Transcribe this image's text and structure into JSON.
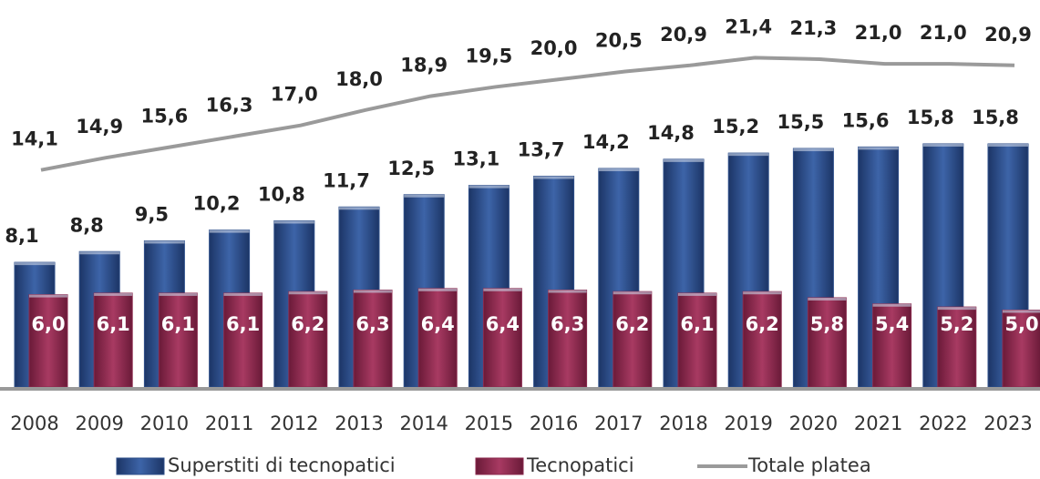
{
  "chart_data": {
    "type": "bar",
    "categories": [
      "2008",
      "2009",
      "2010",
      "2011",
      "2012",
      "2013",
      "2014",
      "2015",
      "2016",
      "2017",
      "2018",
      "2019",
      "2020",
      "2021",
      "2022",
      "2023"
    ],
    "ylim": [
      0,
      25
    ],
    "series": [
      {
        "name": "Superstiti di tecnopatici",
        "type": "bar",
        "color": "#2e4f8a",
        "values": [
          8.1,
          8.8,
          9.5,
          10.2,
          10.8,
          11.7,
          12.5,
          13.1,
          13.7,
          14.2,
          14.8,
          15.2,
          15.5,
          15.6,
          15.8,
          15.8
        ],
        "value_labels": [
          "8,1",
          "8,8",
          "9,5",
          "10,2",
          "10,8",
          "11,7",
          "12,5",
          "13,1",
          "13,7",
          "14,2",
          "14,8",
          "15,2",
          "15,5",
          "15,6",
          "15,8",
          "15,8"
        ]
      },
      {
        "name": "Tecnopatici",
        "type": "bar",
        "color": "#8b2a4e",
        "values": [
          6.0,
          6.1,
          6.1,
          6.1,
          6.2,
          6.3,
          6.4,
          6.4,
          6.3,
          6.2,
          6.1,
          6.2,
          5.8,
          5.4,
          5.2,
          5.0
        ],
        "value_labels": [
          "6,0",
          "6,1",
          "6,1",
          "6,1",
          "6,2",
          "6,3",
          "6,4",
          "6,4",
          "6,3",
          "6,2",
          "6,1",
          "6,2",
          "5,8",
          "5,4",
          "5,2",
          "5,0"
        ]
      },
      {
        "name": "Totale platea",
        "type": "line",
        "color": "#9a9a9a",
        "values": [
          14.1,
          14.9,
          15.6,
          16.3,
          17.0,
          18.0,
          18.9,
          19.5,
          20.0,
          20.5,
          20.9,
          21.4,
          21.3,
          21.0,
          21.0,
          20.9
        ],
        "value_labels": [
          "14,1",
          "14,9",
          "15,6",
          "16,3",
          "17,0",
          "18,0",
          "18,9",
          "19,5",
          "20,0",
          "20,5",
          "20,9",
          "21,4",
          "21,3",
          "21,0",
          "21,0",
          "20,9"
        ]
      }
    ]
  }
}
